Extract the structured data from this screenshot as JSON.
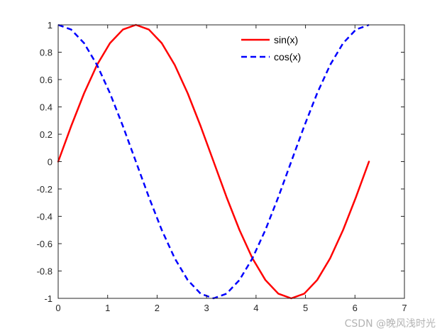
{
  "chart_data": {
    "type": "line",
    "title": "",
    "xlabel": "",
    "ylabel": "",
    "xlim": [
      0,
      7
    ],
    "ylim": [
      -1,
      1
    ],
    "xticks": [
      0,
      1,
      2,
      3,
      4,
      5,
      6,
      7
    ],
    "yticks": [
      1,
      0.8,
      0.6,
      0.4,
      0.2,
      0,
      -0.2,
      -0.4,
      -0.6,
      -0.8,
      -1
    ],
    "xtick_labels": [
      "0",
      "1",
      "2",
      "3",
      "4",
      "5",
      "6",
      "7"
    ],
    "ytick_labels": [
      "1",
      "0.8",
      "0.6",
      "0.4",
      "0.2",
      "0",
      "-0.2",
      "-0.4",
      "-0.6",
      "-0.8",
      "-1"
    ],
    "grid": false,
    "legend": {
      "location": "top-center",
      "box": false
    },
    "x": [
      0,
      0.262,
      0.524,
      0.785,
      1.047,
      1.309,
      1.571,
      1.833,
      2.094,
      2.356,
      2.618,
      2.88,
      3.142,
      3.403,
      3.665,
      3.927,
      4.189,
      4.451,
      4.712,
      4.974,
      5.236,
      5.498,
      5.76,
      6.021,
      6.283
    ],
    "series": [
      {
        "name": "sin(x)",
        "color": "#ff0000",
        "style": "solid",
        "values": [
          0,
          0.259,
          0.5,
          0.707,
          0.866,
          0.966,
          1,
          0.966,
          0.866,
          0.707,
          0.5,
          0.259,
          0,
          -0.259,
          -0.5,
          -0.707,
          -0.866,
          -0.966,
          -1,
          -0.966,
          -0.866,
          -0.707,
          -0.5,
          -0.259,
          0
        ]
      },
      {
        "name": "cos(x)",
        "color": "#0000ff",
        "style": "dashed",
        "values": [
          1,
          0.966,
          0.866,
          0.707,
          0.5,
          0.259,
          0,
          -0.259,
          -0.5,
          -0.707,
          -0.866,
          -0.966,
          -1,
          -0.966,
          -0.866,
          -0.707,
          -0.5,
          -0.259,
          0,
          0.259,
          0.5,
          0.707,
          0.866,
          0.966,
          1
        ]
      }
    ]
  },
  "watermark": "CSDN @晚风浅时光"
}
